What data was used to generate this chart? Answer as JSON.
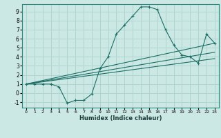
{
  "xlabel": "Humidex (Indice chaleur)",
  "bg_color": "#cce8e5",
  "grid_color": "#b0d4d0",
  "line_color": "#1a6e64",
  "xlim": [
    -0.5,
    23.5
  ],
  "ylim": [
    -1.6,
    9.8
  ],
  "xticks": [
    0,
    1,
    2,
    3,
    4,
    5,
    6,
    7,
    8,
    9,
    10,
    11,
    12,
    13,
    14,
    15,
    16,
    17,
    18,
    19,
    20,
    21,
    22,
    23
  ],
  "yticks": [
    -1,
    0,
    1,
    2,
    3,
    4,
    5,
    6,
    7,
    8,
    9
  ],
  "main_line_x": [
    0,
    1,
    2,
    3,
    4,
    5,
    6,
    7,
    8,
    9,
    10,
    11,
    12,
    13,
    14,
    15,
    16,
    17,
    18,
    19,
    20,
    21,
    22,
    23
  ],
  "main_line_y": [
    1,
    1,
    1,
    1,
    0.7,
    -1.1,
    -0.8,
    -0.8,
    -0.1,
    2.7,
    4.0,
    6.5,
    7.5,
    8.5,
    9.5,
    9.5,
    9.2,
    7.0,
    5.3,
    4.2,
    4.0,
    3.3,
    6.5,
    5.5
  ],
  "line2_x": [
    0,
    23
  ],
  "line2_y": [
    1.0,
    5.5
  ],
  "line3_x": [
    0,
    23
  ],
  "line3_y": [
    1.0,
    4.5
  ],
  "line4_x": [
    0,
    23
  ],
  "line4_y": [
    1.0,
    3.8
  ]
}
